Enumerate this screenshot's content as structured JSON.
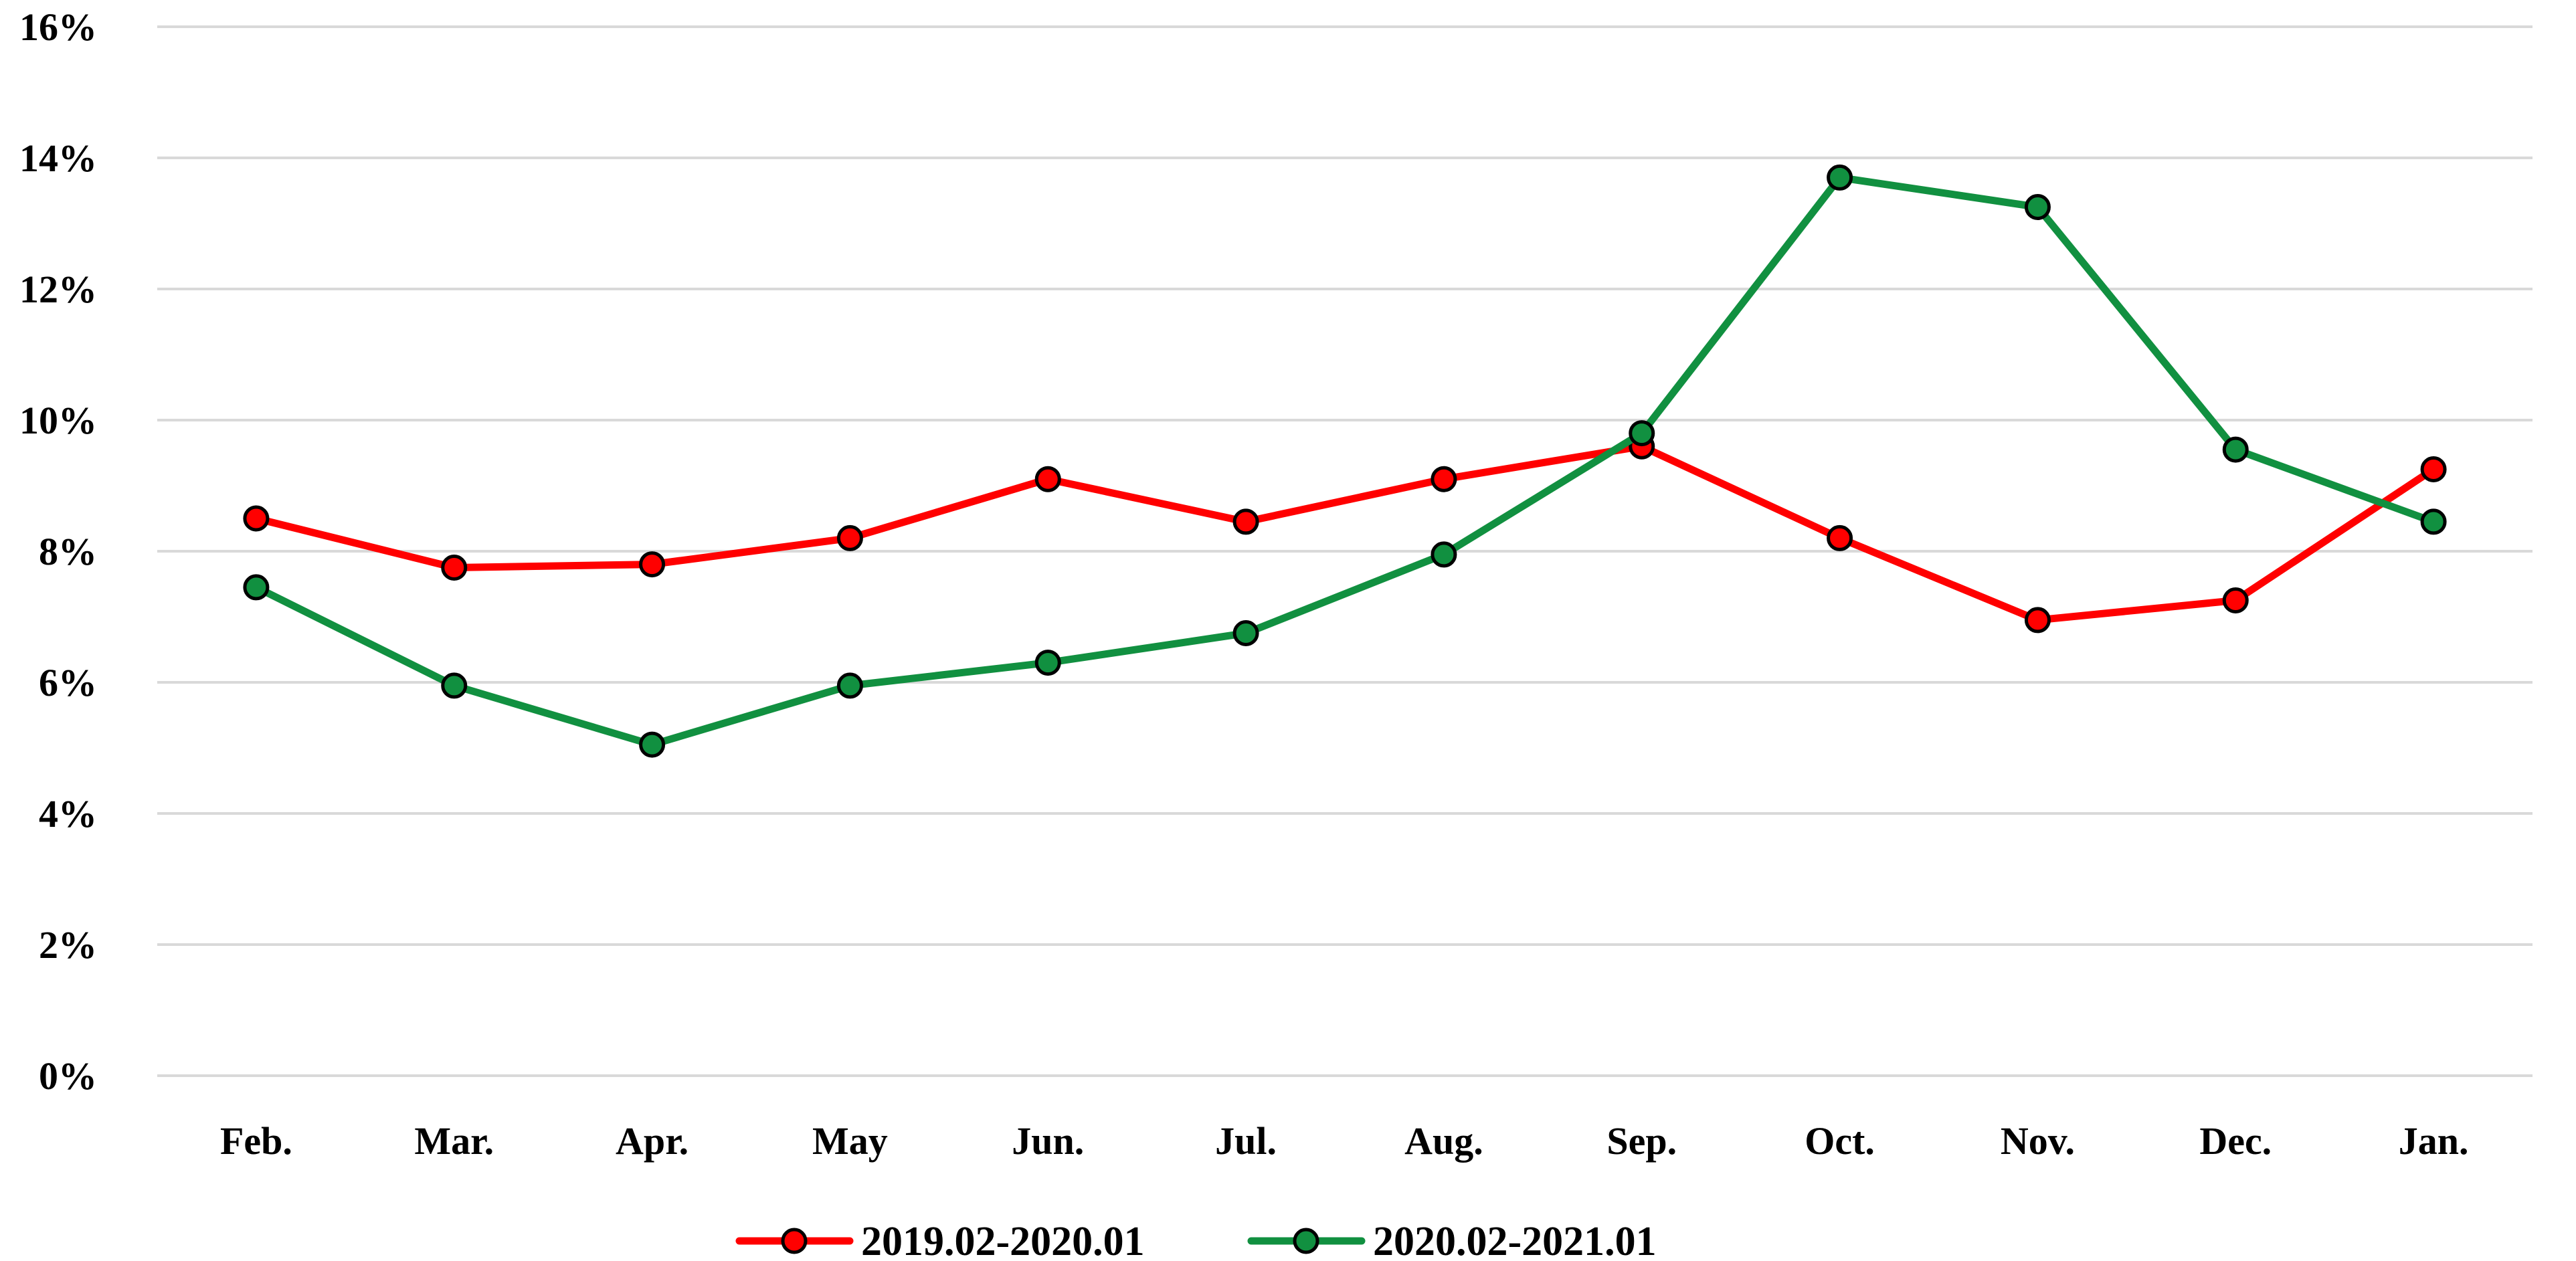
{
  "chart_data": {
    "type": "line",
    "title": "",
    "xlabel": "",
    "ylabel": "",
    "categories": [
      "Feb.",
      "Mar.",
      "Apr.",
      "May",
      "Jun.",
      "Jul.",
      "Aug.",
      "Sep.",
      "Oct.",
      "Nov.",
      "Dec.",
      "Jan."
    ],
    "y_ticks": [
      "0%",
      "2%",
      "4%",
      "6%",
      "8%",
      "10%",
      "12%",
      "14%",
      "16%"
    ],
    "ylim": [
      0,
      16
    ],
    "y_unit": "%",
    "grid": true,
    "legend_position": "bottom",
    "series": [
      {
        "name": "2019.02-2020.01",
        "color": "#ff0000",
        "values": [
          8.5,
          7.75,
          7.8,
          8.2,
          9.1,
          8.45,
          9.1,
          9.6,
          8.2,
          6.95,
          7.25,
          9.25
        ]
      },
      {
        "name": "2020.02-2021.01",
        "color": "#119040",
        "values": [
          7.45,
          5.95,
          5.05,
          5.95,
          6.3,
          6.75,
          7.95,
          9.8,
          13.7,
          13.25,
          9.55,
          8.45
        ]
      }
    ]
  }
}
